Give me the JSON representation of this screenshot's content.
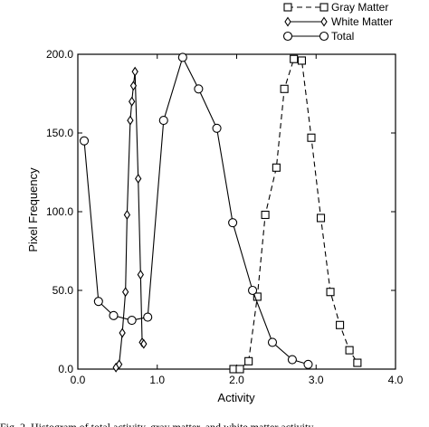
{
  "chart_data": {
    "type": "line",
    "xlabel": "Activity",
    "ylabel": "Pixel Frequency",
    "xlim": [
      0,
      4
    ],
    "ylim": [
      0,
      200
    ],
    "x_ticks": [
      "0.0",
      "1.0",
      "2.0",
      "3.0",
      "4.0"
    ],
    "y_ticks": [
      "0.0",
      "50.0",
      "100.0",
      "150.0",
      "200.0"
    ],
    "grid": false,
    "legend_position": "top-right",
    "series": [
      {
        "name": "Gray Matter",
        "marker": "square",
        "line": "dashed",
        "points": [
          [
            1.96,
            0
          ],
          [
            2.04,
            0
          ],
          [
            2.15,
            5
          ],
          [
            2.26,
            46
          ],
          [
            2.36,
            98
          ],
          [
            2.5,
            128
          ],
          [
            2.6,
            178
          ],
          [
            2.72,
            197
          ],
          [
            2.82,
            196
          ],
          [
            2.94,
            147
          ],
          [
            3.06,
            96
          ],
          [
            3.18,
            49
          ],
          [
            3.3,
            28
          ],
          [
            3.42,
            12
          ],
          [
            3.52,
            4
          ]
        ]
      },
      {
        "name": "White Matter",
        "marker": "diamond",
        "line": "solid",
        "points": [
          [
            0.48,
            1
          ],
          [
            0.52,
            3
          ],
          [
            0.56,
            23
          ],
          [
            0.6,
            49
          ],
          [
            0.62,
            98
          ],
          [
            0.66,
            158
          ],
          [
            0.68,
            170
          ],
          [
            0.7,
            180
          ],
          [
            0.72,
            189
          ],
          [
            0.76,
            121
          ],
          [
            0.79,
            60
          ],
          [
            0.81,
            17
          ],
          [
            0.83,
            16
          ]
        ]
      },
      {
        "name": "Total",
        "marker": "circle",
        "line": "solid",
        "points": [
          [
            0.08,
            145
          ],
          [
            0.26,
            43
          ],
          [
            0.45,
            34
          ],
          [
            0.68,
            31
          ],
          [
            0.88,
            33
          ],
          [
            1.08,
            158
          ],
          [
            1.32,
            198
          ],
          [
            1.52,
            178
          ],
          [
            1.75,
            153
          ],
          [
            1.95,
            93
          ],
          [
            2.2,
            50
          ],
          [
            2.45,
            17
          ],
          [
            2.7,
            6
          ],
          [
            2.9,
            3
          ]
        ]
      }
    ]
  },
  "caption": "Fig. 2.   Histogram of total activity, gray matter, and white matter activity"
}
